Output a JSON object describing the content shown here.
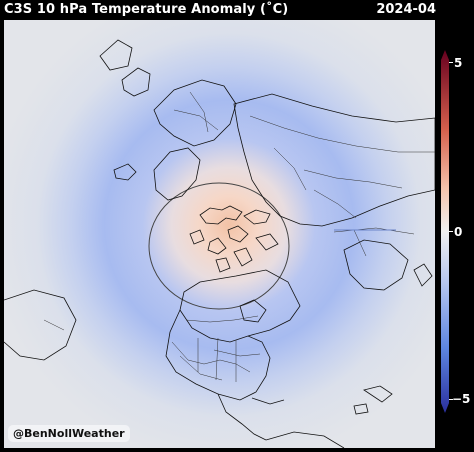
{
  "title": "C3S 10 hPa Temperature Anomaly (˚C)",
  "date": "2024-04",
  "colorbar": {
    "ticks": [
      "5",
      "0",
      "−5"
    ],
    "values": [
      5,
      0,
      -5
    ],
    "colors": {
      "max": "#67001f",
      "warm": "#d6604d",
      "neutral": "#f0f0f0",
      "cool": "#5e86e0",
      "min": "#2a2f9e"
    }
  },
  "map": {
    "projection": "north-polar-stereographic",
    "features": [
      "coastlines",
      "country-borders",
      "us-state-borders",
      "polar-vortex-contour"
    ],
    "anomaly_pattern": {
      "pole": "warm",
      "ring": "cool",
      "outer": "neutral"
    }
  },
  "watermark": "@BenNollWeather"
}
